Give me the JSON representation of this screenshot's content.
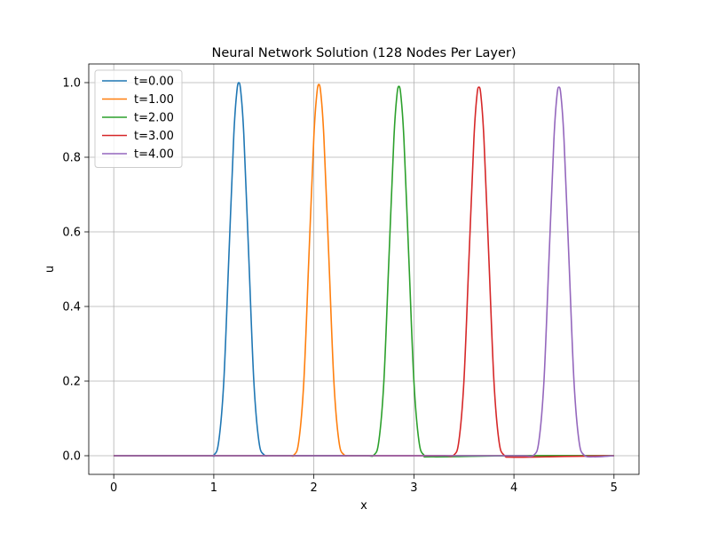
{
  "chart_data": {
    "type": "line",
    "title": "Neural Network Solution (128 Nodes Per Layer)",
    "xlabel": "x",
    "ylabel": "u",
    "xlim": [
      -0.25,
      5.25
    ],
    "ylim": [
      -0.05,
      1.05
    ],
    "xticks": [
      0,
      1,
      2,
      3,
      4,
      5
    ],
    "xtick_labels": [
      "0",
      "1",
      "2",
      "3",
      "4",
      "5"
    ],
    "yticks": [
      0.0,
      0.2,
      0.4,
      0.6,
      0.8,
      1.0
    ],
    "ytick_labels": [
      "0.0",
      "0.2",
      "0.4",
      "0.6",
      "0.8",
      "1.0"
    ],
    "grid": true,
    "legend_position": "top-left",
    "series": [
      {
        "name": "t=0.00",
        "color": "#1f77b4",
        "x": [
          0.0,
          0.9,
          1.0,
          1.05,
          1.1,
          1.15,
          1.2,
          1.23,
          1.25,
          1.27,
          1.3,
          1.35,
          1.4,
          1.45,
          1.5,
          1.6,
          2.0,
          3.0,
          4.0,
          5.0
        ],
        "y": [
          0.0,
          0.0,
          0.002,
          0.04,
          0.2,
          0.53,
          0.86,
          0.975,
          1.0,
          0.975,
          0.86,
          0.53,
          0.2,
          0.04,
          0.003,
          0.0,
          0.0,
          0.0,
          0.0,
          0.0
        ]
      },
      {
        "name": "t=1.00",
        "color": "#ff7f0e",
        "x": [
          0.0,
          1.0,
          1.7,
          1.8,
          1.85,
          1.9,
          1.95,
          2.0,
          2.03,
          2.05,
          2.07,
          2.1,
          2.15,
          2.2,
          2.25,
          2.3,
          2.4,
          3.0,
          4.0,
          5.0
        ],
        "y": [
          0.0,
          0.0,
          0.0,
          0.002,
          0.04,
          0.2,
          0.53,
          0.855,
          0.97,
          0.995,
          0.97,
          0.855,
          0.53,
          0.2,
          0.04,
          0.003,
          0.0,
          0.0,
          0.0,
          0.0
        ]
      },
      {
        "name": "t=2.00",
        "color": "#2ca02c",
        "x": [
          0.0,
          1.0,
          2.0,
          2.5,
          2.6,
          2.65,
          2.7,
          2.75,
          2.8,
          2.83,
          2.85,
          2.87,
          2.9,
          2.95,
          3.0,
          3.05,
          3.1,
          3.2,
          4.0,
          5.0
        ],
        "y": [
          0.0,
          0.0,
          0.0,
          0.0,
          0.002,
          0.04,
          0.2,
          0.525,
          0.85,
          0.965,
          0.99,
          0.965,
          0.85,
          0.525,
          0.2,
          0.04,
          0.002,
          -0.003,
          0.0,
          0.0
        ]
      },
      {
        "name": "t=3.00",
        "color": "#d62728",
        "x": [
          0.0,
          1.0,
          2.0,
          3.0,
          3.3,
          3.4,
          3.45,
          3.5,
          3.55,
          3.6,
          3.63,
          3.65,
          3.67,
          3.7,
          3.75,
          3.8,
          3.85,
          3.9,
          4.0,
          4.5,
          5.0
        ],
        "y": [
          0.0,
          0.0,
          0.0,
          0.0,
          0.0,
          0.002,
          0.04,
          0.2,
          0.525,
          0.85,
          0.965,
          0.988,
          0.965,
          0.85,
          0.525,
          0.2,
          0.04,
          0.002,
          -0.004,
          -0.002,
          0.0
        ]
      },
      {
        "name": "t=4.00",
        "color": "#9467bd",
        "x": [
          0.0,
          1.0,
          2.0,
          3.0,
          4.0,
          4.1,
          4.2,
          4.25,
          4.3,
          4.35,
          4.4,
          4.43,
          4.45,
          4.47,
          4.5,
          4.55,
          4.6,
          4.65,
          4.7,
          4.8,
          5.0
        ],
        "y": [
          0.0,
          0.0,
          0.0,
          0.0,
          0.0,
          0.0,
          0.002,
          0.04,
          0.2,
          0.525,
          0.85,
          0.965,
          0.988,
          0.965,
          0.85,
          0.525,
          0.2,
          0.04,
          0.002,
          -0.003,
          0.0
        ]
      }
    ]
  }
}
